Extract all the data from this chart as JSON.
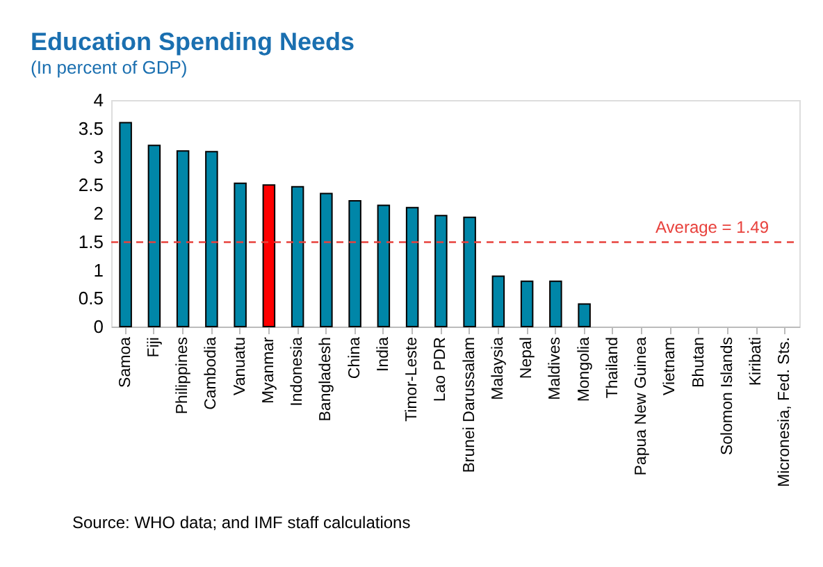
{
  "chart_data": {
    "type": "bar",
    "title": "Education Spending Needs",
    "subtitle": "(In percent of GDP)",
    "categories": [
      "Samoa",
      "Fiji",
      "Philippines",
      "Cambodia",
      "Vanuatu",
      "Myanmar",
      "Indonesia",
      "Bangladesh",
      "China",
      "India",
      "Timor-Leste",
      "Lao PDR",
      "Brunei Darussalam",
      "Malaysia",
      "Nepal",
      "Maldives",
      "Mongolia",
      "Thailand",
      "Papua New Guinea",
      "Vietnam",
      "Bhutan",
      "Solomon Islands",
      "Kiribati",
      "Micronesia, Fed. Sts."
    ],
    "values": [
      3.6,
      3.2,
      3.1,
      3.09,
      2.53,
      2.5,
      2.47,
      2.35,
      2.22,
      2.14,
      2.1,
      1.96,
      1.93,
      0.89,
      0.8,
      0.8,
      0.4,
      null,
      null,
      null,
      null,
      null,
      null,
      null
    ],
    "colors": [
      "#0086a8",
      "#0086a8",
      "#0086a8",
      "#0086a8",
      "#0086a8",
      "#ff0000",
      "#0086a8",
      "#0086a8",
      "#0086a8",
      "#0086a8",
      "#0086a8",
      "#0086a8",
      "#0086a8",
      "#0086a8",
      "#0086a8",
      "#0086a8",
      "#0086a8",
      "#0086a8",
      "#0086a8",
      "#0086a8",
      "#0086a8",
      "#0086a8",
      "#0086a8",
      "#0086a8"
    ],
    "ylim": [
      0,
      4
    ],
    "yticks": [
      0,
      0.5,
      1,
      1.5,
      2,
      2.5,
      3,
      3.5,
      4
    ],
    "grid": false,
    "ref_lines": [
      {
        "axis": "y",
        "value": 1.49,
        "label": "Average = 1.49",
        "color": "#e8413c",
        "line_style": "dashed"
      }
    ],
    "annotations": [
      "Source: WHO data; and IMF staff calculations"
    ]
  }
}
